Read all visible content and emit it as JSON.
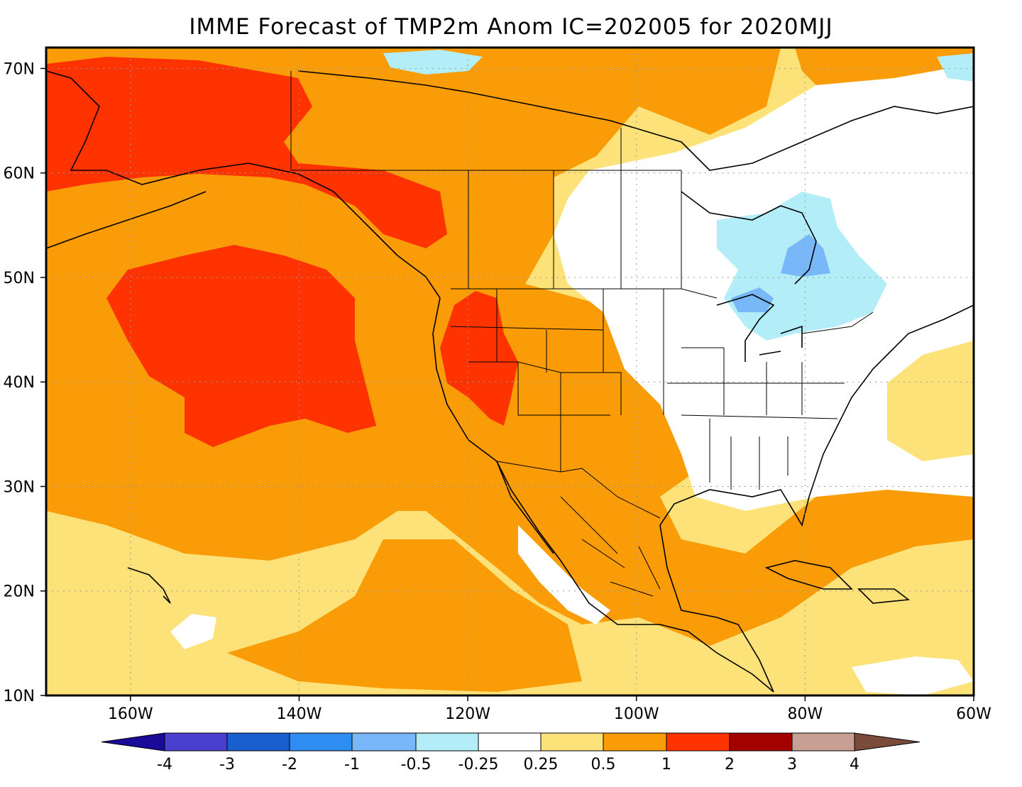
{
  "title": "IMME Forecast of TMP2m Anom IC=202005 for 2020MJJ",
  "map": {
    "lon_range": [
      -170,
      -60
    ],
    "lat_range": [
      10,
      72
    ],
    "lat_labels": [
      "10N",
      "20N",
      "30N",
      "40N",
      "50N",
      "60N",
      "70N"
    ],
    "lat_values": [
      10,
      20,
      30,
      40,
      50,
      60,
      70
    ],
    "lon_labels": [
      "160W",
      "140W",
      "120W",
      "100W",
      "80W",
      "60W"
    ],
    "lon_values": [
      -160,
      -140,
      -120,
      -100,
      -80,
      -60
    ],
    "gridlines": "dotted"
  },
  "colorbar": {
    "labels": [
      "-4",
      "-3",
      "-2",
      "-1",
      "-0.5",
      "-0.25",
      "0.25",
      "0.5",
      "1",
      "2",
      "3",
      "4"
    ],
    "colors": [
      "#1a0a9a",
      "#4b3fcf",
      "#1a5fcf",
      "#2f8cf0",
      "#78b7f8",
      "#b3eef8",
      "#ffffff",
      "#fde27a",
      "#f99c08",
      "#ff3300",
      "#a30000",
      "#c7a093",
      "#7a4a3a"
    ]
  },
  "fill_colors": {
    "ocean_bg": "#fde27a",
    "warm": "#f99c08",
    "hot": "#ff3300",
    "neutral": "#ffffff",
    "cool": "#b3eef8",
    "cooler": "#78b7f8"
  }
}
